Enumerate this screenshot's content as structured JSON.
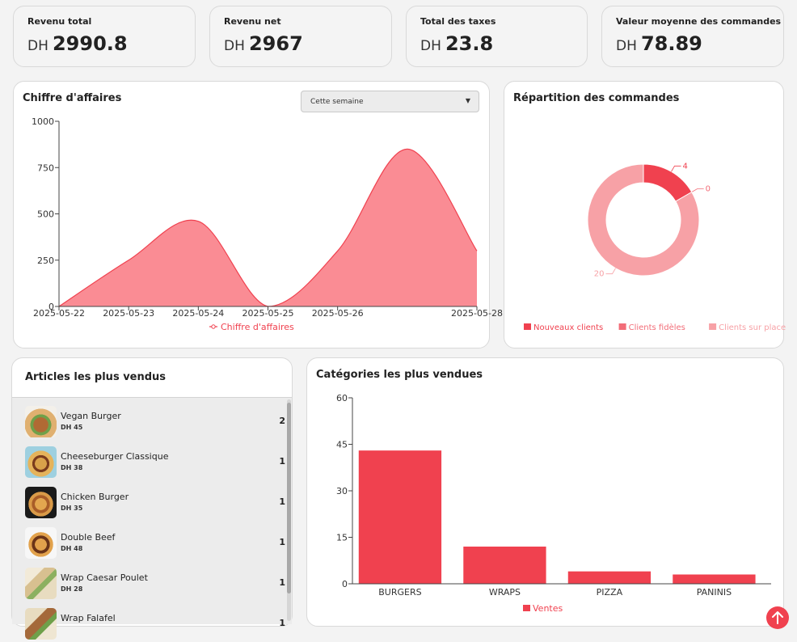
{
  "kpis": [
    {
      "title": "Revenu total",
      "currency": "DH",
      "value": "2990.8"
    },
    {
      "title": "Revenu net",
      "currency": "DH",
      "value": "2967"
    },
    {
      "title": "Total des taxes",
      "currency": "DH",
      "value": "23.8"
    },
    {
      "title": "Valeur moyenne des commandes",
      "currency": "DH",
      "value": "78.89"
    }
  ],
  "revenue_card": {
    "title": "Chiffre d'affaires",
    "period_select": {
      "value": "Cette semaine"
    }
  },
  "orders_card": {
    "title": "Répartition des commandes"
  },
  "top_items": {
    "title": "Articles les plus vendus",
    "items": [
      {
        "name": "Vegan Burger",
        "price": "DH 45",
        "count": "2"
      },
      {
        "name": "Cheeseburger Classique",
        "price": "DH 38",
        "count": "1"
      },
      {
        "name": "Chicken Burger",
        "price": "DH 35",
        "count": "1"
      },
      {
        "name": "Double Beef",
        "price": "DH 48",
        "count": "1"
      },
      {
        "name": "Wrap Caesar Poulet",
        "price": "DH 28",
        "count": "1"
      },
      {
        "name": "Wrap Falafel",
        "price": "",
        "count": "1"
      }
    ]
  },
  "categories_card": {
    "title": "Catégories les plus vendues"
  },
  "icons": {
    "dropdown": "caret-down-icon",
    "scroll_top": "arrow-up-icon"
  },
  "colors": {
    "accent": "#f0414f",
    "area_fill": "#fa8c94",
    "pink": "#f7a1a6"
  },
  "chart_data": [
    {
      "type": "area",
      "x": [
        "2025-05-22",
        "2025-05-23",
        "2025-05-24",
        "2025-05-25",
        "2025-05-26",
        "2025-05-27",
        "2025-05-28"
      ],
      "x_tick_labels": [
        "2025-05-22",
        "2025-05-23",
        "2025-05-24",
        "2025-05-25",
        "2025-05-26",
        "2025-05-28"
      ],
      "series": [
        {
          "name": "Chiffre d'affaires",
          "values": [
            0,
            250,
            460,
            0,
            300,
            850,
            300
          ]
        }
      ],
      "ylim": [
        0,
        1000
      ],
      "yticks": [
        "0",
        "250",
        "500",
        "750",
        "1000"
      ],
      "legend": "bottom",
      "grid": false
    },
    {
      "type": "pie",
      "donut": true,
      "labels": [
        "Nouveaux clients",
        "Clients fidèles",
        "Clients sur place"
      ],
      "values": [
        4,
        0,
        20
      ],
      "data_labels": [
        "4",
        "0",
        "20"
      ],
      "colors": [
        "#f0414f",
        "#f26d78",
        "#f7a1a6"
      ],
      "legend": "bottom"
    },
    {
      "type": "bar",
      "categories": [
        "BURGERS",
        "WRAPS",
        "PIZZA",
        "PANINIS"
      ],
      "series": [
        {
          "name": "Ventes",
          "values": [
            43,
            12,
            4,
            3
          ]
        }
      ],
      "ylim": [
        0,
        60
      ],
      "yticks": [
        "0",
        "15",
        "30",
        "45",
        "60"
      ],
      "legend": "bottom",
      "grid": false
    }
  ]
}
